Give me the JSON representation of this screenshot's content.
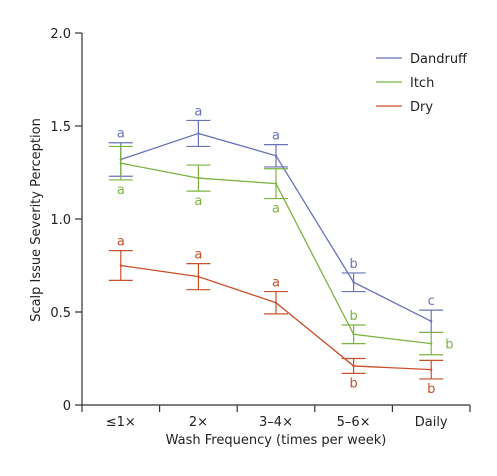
{
  "chart_data": {
    "type": "line",
    "xlabel": "Wash Frequency (times per week)",
    "ylabel": "Scalp Issue Severity Perception",
    "categories": [
      "≤1×",
      "2×",
      "3–4×",
      "5–6×",
      "Daily"
    ],
    "ylim": [
      0,
      2.0
    ],
    "yticks": [
      0,
      0.5,
      1.0,
      1.5,
      2.0
    ],
    "ytick_labels": [
      "0",
      "0.5",
      "1.0",
      "1.5",
      "2.0"
    ],
    "grid": false,
    "legend_position": "top-right",
    "series": [
      {
        "name": "Dandruff",
        "color": "#6a72b8",
        "values": [
          1.32,
          1.46,
          1.34,
          0.66,
          0.45
        ],
        "error": [
          0.09,
          0.07,
          0.06,
          0.05,
          0.06
        ],
        "letters": [
          "a",
          "a",
          "a",
          "b",
          "c"
        ],
        "letter_side": [
          "above",
          "above",
          "above",
          "above",
          "above"
        ]
      },
      {
        "name": "Itch",
        "color": "#7cb342",
        "values": [
          1.3,
          1.22,
          1.19,
          0.38,
          0.33
        ],
        "error": [
          0.09,
          0.07,
          0.08,
          0.05,
          0.06
        ],
        "letters": [
          "a",
          "a",
          "a",
          "b",
          "b"
        ],
        "letter_side": [
          "below",
          "below",
          "below",
          "above",
          "right"
        ]
      },
      {
        "name": "Dry",
        "color": "#c8502a",
        "values": [
          0.75,
          0.69,
          0.55,
          0.21,
          0.19
        ],
        "error": [
          0.08,
          0.07,
          0.06,
          0.04,
          0.05
        ],
        "letters": [
          "a",
          "a",
          "a",
          "b",
          "b"
        ],
        "letter_side": [
          "above",
          "above",
          "above",
          "below",
          "below"
        ]
      }
    ]
  }
}
